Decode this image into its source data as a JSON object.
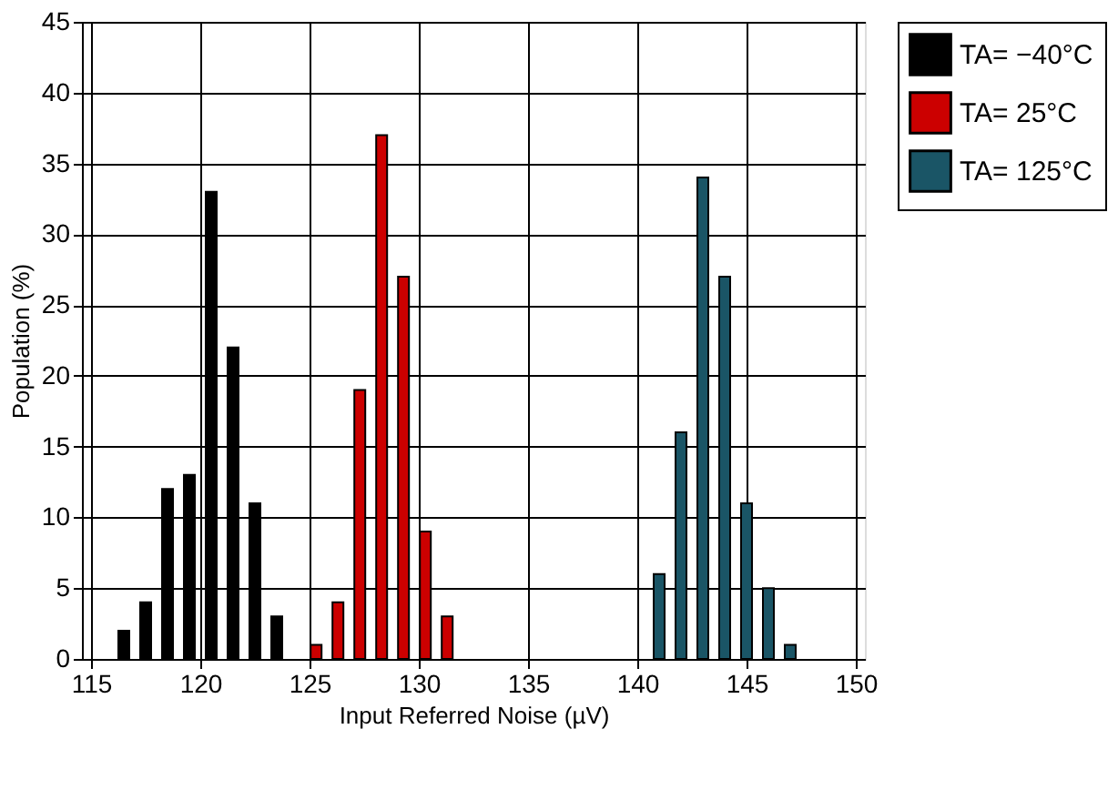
{
  "chart_data": {
    "type": "bar",
    "xlabel": "Input Referred Noise (µV)",
    "ylabel": "Population (%)",
    "xlim": [
      115,
      150
    ],
    "xticks": [
      115,
      120,
      125,
      130,
      135,
      140,
      145,
      150
    ],
    "ylim": [
      0,
      45
    ],
    "yticks": [
      0,
      5,
      10,
      15,
      20,
      25,
      30,
      35,
      40,
      45
    ],
    "grid": true,
    "legend": "right",
    "series": [
      {
        "name": "TA= −40°C",
        "color": "#000000",
        "x": [
          116.5,
          117.5,
          118.5,
          119.5,
          120.5,
          121.5,
          122.5,
          123.5
        ],
        "values": [
          2,
          4,
          12,
          13,
          33,
          22,
          11,
          3
        ]
      },
      {
        "name": "TA=  25°C",
        "color": "#cc0000",
        "x": [
          125.3,
          126.3,
          127.3,
          128.3,
          129.3,
          130.3,
          131.3
        ],
        "values": [
          1,
          4,
          19,
          37,
          27,
          9,
          3
        ]
      },
      {
        "name": "TA= 125°C",
        "color": "#1a5566",
        "x": [
          141.0,
          142.0,
          143.0,
          144.0,
          145.0,
          146.0,
          147.0
        ],
        "values": [
          6,
          16,
          34,
          27,
          11,
          5,
          1
        ]
      }
    ]
  }
}
